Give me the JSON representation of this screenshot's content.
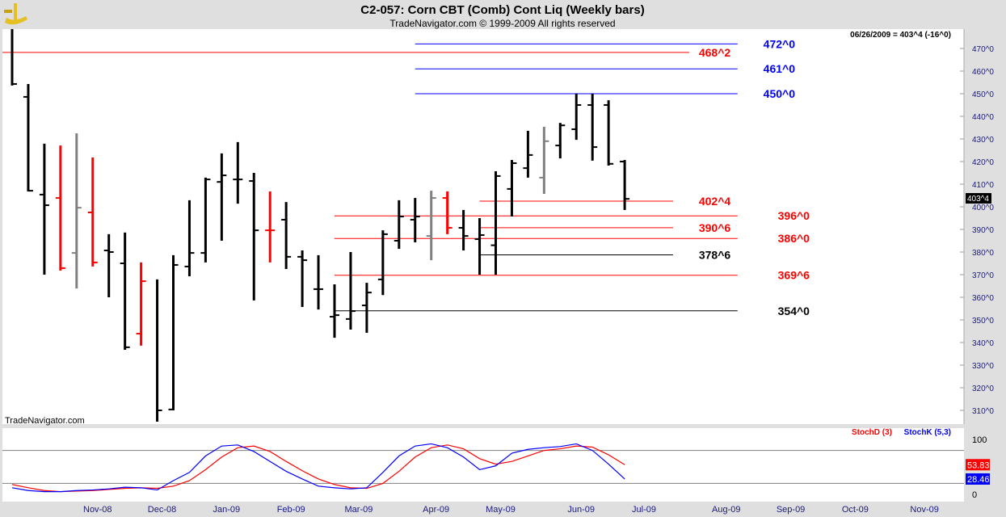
{
  "header": {
    "title": "C2-057:  Corn CBT (Comb) Cont Liq  (Weekly bars)",
    "copyright": "TradeNavigator.com © 1999-2009 All rights reserved"
  },
  "readout": "06/26/2009 = 403^4 (-16^0)",
  "watermark": "TradeNavigator.com",
  "last_price_label": "403^4",
  "colors": {
    "up": "#000000",
    "red": "#ff0000",
    "gray": "#808080",
    "blue": "#0000ff",
    "green": "#00cc00"
  },
  "chart_data": [
    {
      "type": "ohlc",
      "title": "C2-057: Corn CBT (Comb) Cont Liq (Weekly bars)",
      "ylim": [
        305,
        478
      ],
      "yticks": [
        "470^0",
        "460^0",
        "450^0",
        "440^0",
        "430^0",
        "420^0",
        "410^0",
        "400^0",
        "390^0",
        "380^0",
        "370^0",
        "360^0",
        "350^0",
        "340^0",
        "330^0",
        "320^0",
        "310^0"
      ],
      "ytick_values": [
        470,
        460,
        450,
        440,
        430,
        420,
        410,
        400,
        390,
        380,
        370,
        360,
        350,
        340,
        330,
        320,
        310
      ],
      "xticks": [
        {
          "label": "Nov-08",
          "week": 5.3
        },
        {
          "label": "Dec-08",
          "week": 9.3
        },
        {
          "label": "Jan-09",
          "week": 13.3
        },
        {
          "label": "Feb-09",
          "week": 17.3
        },
        {
          "label": "Mar-09",
          "week": 21.5
        },
        {
          "label": "Apr-09",
          "week": 26.3
        },
        {
          "label": "May-09",
          "week": 30.3
        },
        {
          "label": "Jun-09",
          "week": 35.3
        },
        {
          "label": "Jul-09",
          "week": 39.2
        },
        {
          "label": "Aug-09",
          "week": 44.3
        },
        {
          "label": "Sep-09",
          "week": 48.3
        },
        {
          "label": "Oct-09",
          "week": 52.3
        },
        {
          "label": "Nov-09",
          "week": 56.6
        }
      ],
      "bars": [
        {
          "h": 478.6,
          "l": 453.6,
          "o": null,
          "c": 454.3,
          "col": "up"
        },
        {
          "h": 454.3,
          "l": 406.8,
          "o": 448.6,
          "c": 407.1,
          "col": "up"
        },
        {
          "h": 427.9,
          "l": 370,
          "o": 405.4,
          "c": 400.7,
          "col": "up"
        },
        {
          "h": 427.1,
          "l": 371.8,
          "o": 403.9,
          "c": 372.9,
          "col": "red"
        },
        {
          "h": 432.5,
          "l": 363.9,
          "o": 379.6,
          "c": 399.6,
          "col": "gray"
        },
        {
          "h": 421.8,
          "l": 373.6,
          "o": 397.5,
          "c": 375.4,
          "col": "red"
        },
        {
          "h": 387.9,
          "l": 360,
          "o": 380.7,
          "c": 380,
          "col": "up"
        },
        {
          "h": 388.6,
          "l": 336.8,
          "o": 375,
          "c": 337.9,
          "col": "up"
        },
        {
          "h": 375.4,
          "l": 338.6,
          "o": 343.9,
          "c": 367.1,
          "col": "red"
        },
        {
          "h": 367.9,
          "l": 305,
          "o": null,
          "c": 310,
          "col": "up"
        },
        {
          "h": 378.6,
          "l": 310,
          "o": 310.4,
          "c": 374.3,
          "col": "up"
        },
        {
          "h": 402.9,
          "l": 369.3,
          "o": 373.6,
          "c": 379.6,
          "col": "up"
        },
        {
          "h": 412.9,
          "l": 375.4,
          "o": 379.6,
          "c": 412.1,
          "col": "up"
        },
        {
          "h": 423.6,
          "l": 385,
          "o": 411,
          "c": 413.9,
          "col": "up"
        },
        {
          "h": 428.6,
          "l": 401.4,
          "o": 412.1,
          "c": 412.1,
          "col": "up"
        },
        {
          "h": 415,
          "l": 358.6,
          "o": 411.4,
          "c": 389.6,
          "col": "up"
        },
        {
          "h": 406.8,
          "l": 375.4,
          "o": 389.6,
          "c": 389.6,
          "col": "red"
        },
        {
          "h": 402.1,
          "l": 372.5,
          "o": 394.3,
          "c": 377.9,
          "col": "up"
        },
        {
          "h": 380.7,
          "l": 355.7,
          "o": 377.9,
          "c": 376.4,
          "col": "up"
        },
        {
          "h": 378.6,
          "l": 354.6,
          "o": 363.6,
          "c": 363.6,
          "col": "up"
        },
        {
          "h": 365.7,
          "l": 342.1,
          "o": 351.4,
          "c": 352.1,
          "col": "up"
        },
        {
          "h": 380,
          "l": 345.7,
          "o": 350.4,
          "c": 353.9,
          "col": "up"
        },
        {
          "h": 366.4,
          "l": 344.3,
          "o": 356.4,
          "c": 362.1,
          "col": "up"
        },
        {
          "h": 389.6,
          "l": 361,
          "o": 367.9,
          "c": 387.9,
          "col": "up"
        },
        {
          "h": 402.9,
          "l": 381.4,
          "o": 385,
          "c": 395.7,
          "col": "up"
        },
        {
          "h": 403.9,
          "l": 384.3,
          "o": 394.3,
          "c": 395.7,
          "col": "up"
        },
        {
          "h": 407.1,
          "l": 376.4,
          "o": 387.1,
          "c": 403.9,
          "col": "gray"
        },
        {
          "h": 406.8,
          "l": 387.9,
          "o": 403.9,
          "c": 390.7,
          "col": "red"
        },
        {
          "h": 398.6,
          "l": 380.7,
          "o": 390.7,
          "c": 387.1,
          "col": "up"
        },
        {
          "h": 395,
          "l": 370,
          "o": 385.7,
          "c": 387.5,
          "col": "up"
        },
        {
          "h": 415.7,
          "l": 370,
          "o": 383,
          "c": 413.6,
          "col": "up"
        },
        {
          "h": 420.7,
          "l": 395.7,
          "o": 407.9,
          "c": 419.3,
          "col": "up"
        },
        {
          "h": 433.6,
          "l": 412.9,
          "o": 417.1,
          "c": 422.9,
          "col": "up"
        },
        {
          "h": 435.4,
          "l": 405.7,
          "o": 412.9,
          "c": 429,
          "col": "gray"
        },
        {
          "h": 437.1,
          "l": 421.4,
          "o": 427.1,
          "c": 436,
          "col": "up"
        },
        {
          "h": 450,
          "l": 429.6,
          "o": 434.3,
          "c": 445,
          "col": "up"
        },
        {
          "h": 450,
          "l": 420.4,
          "o": 445,
          "c": 426.4,
          "col": "up"
        },
        {
          "h": 447.1,
          "l": 418.2,
          "o": 445,
          "c": 419,
          "col": "up"
        },
        {
          "h": 420.7,
          "l": 398.6,
          "o": 420,
          "c": 403.5,
          "col": "up"
        }
      ],
      "levels": [
        {
          "label": "472^0",
          "price": 472,
          "from": 25,
          "to": 45,
          "col": "blue",
          "label_week": 46.6
        },
        {
          "label": "468^2",
          "price": 468.25,
          "from": -1,
          "to": 42,
          "col": "red",
          "label_week": 42.6
        },
        {
          "label": "461^0",
          "price": 461,
          "from": 25,
          "to": 45,
          "col": "blue",
          "label_week": 46.6
        },
        {
          "label": "450^0",
          "price": 450,
          "from": 25,
          "to": 45,
          "col": "blue",
          "label_week": 46.6
        },
        {
          "label": "402^4",
          "price": 402.5,
          "from": 29,
          "to": 41,
          "col": "red",
          "label_week": 42.6
        },
        {
          "label": "396^0",
          "price": 396,
          "from": 20,
          "to": 45,
          "col": "red",
          "label_week": 47.5
        },
        {
          "label": "390^6",
          "price": 390.75,
          "from": 29,
          "to": 41,
          "col": "red",
          "label_week": 42.6
        },
        {
          "label": "386^0",
          "price": 386,
          "from": 20,
          "to": 45,
          "col": "red",
          "label_week": 47.5
        },
        {
          "label": "378^6",
          "price": 378.75,
          "from": 29,
          "to": 41,
          "col": "up",
          "label_week": 42.6
        },
        {
          "label": "369^6",
          "price": 369.75,
          "from": 20,
          "to": 45,
          "col": "red",
          "label_week": 47.5
        },
        {
          "label": "354^0",
          "price": 354,
          "from": 20,
          "to": 45,
          "col": "up",
          "label_week": 47.5
        }
      ]
    },
    {
      "type": "line",
      "ylim": [
        0,
        100
      ],
      "yticks": [
        "100",
        "0"
      ],
      "ytick_values": [
        100,
        0
      ],
      "reference_lines": [
        80,
        20
      ],
      "series": [
        {
          "name": "StochD (3)",
          "col": "red",
          "last": "53.83",
          "values": [
            18,
            12,
            7,
            5,
            6,
            7,
            9,
            11,
            12,
            11,
            15,
            25,
            45,
            68,
            85,
            88,
            78,
            60,
            43,
            28,
            18,
            12,
            11,
            20,
            42,
            68,
            85,
            90,
            83,
            65,
            55,
            60,
            70,
            80,
            83,
            88,
            86,
            72,
            54
          ]
        },
        {
          "name": "StochK (5,3)",
          "col": "blue",
          "last": "28.46",
          "values": [
            12,
            7,
            5,
            5,
            7,
            8,
            10,
            13,
            12,
            8,
            25,
            40,
            70,
            88,
            90,
            78,
            60,
            42,
            28,
            15,
            12,
            10,
            12,
            40,
            70,
            88,
            92,
            85,
            68,
            45,
            52,
            75,
            82,
            85,
            87,
            92,
            80,
            55,
            28
          ]
        }
      ]
    }
  ]
}
